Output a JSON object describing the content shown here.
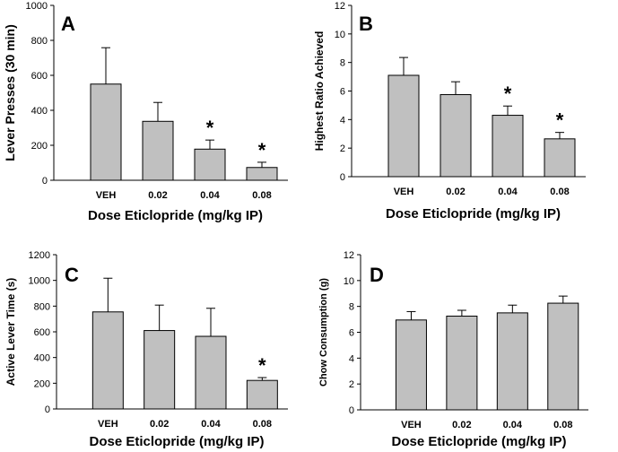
{
  "colors": {
    "bar_fill": "#c0c0c0",
    "axis": "#000000"
  },
  "chart_data": [
    {
      "type": "bar",
      "panel": "A",
      "categories": [
        "VEH",
        "0.02",
        "0.04",
        "0.08"
      ],
      "values": [
        550,
        337,
        178,
        73
      ],
      "errors": [
        208,
        108,
        52,
        30
      ],
      "significant": [
        "",
        "",
        "*",
        "*"
      ],
      "ylim": [
        0,
        1000
      ],
      "yticks": [
        0,
        200,
        400,
        600,
        800,
        1000
      ],
      "xlabel": "Dose Eticlopride (mg/kg IP)",
      "ylabel": "Lever Presses (30 min)",
      "grid": false
    },
    {
      "type": "bar",
      "panel": "B",
      "categories": [
        "VEH",
        "0.02",
        "0.04",
        "0.08"
      ],
      "values": [
        7.1,
        5.75,
        4.3,
        2.65
      ],
      "errors": [
        1.25,
        0.9,
        0.65,
        0.45
      ],
      "significant": [
        "",
        "",
        "*",
        "*"
      ],
      "ylim": [
        0,
        12
      ],
      "yticks": [
        0,
        2,
        4,
        6,
        8,
        10,
        12
      ],
      "xlabel": "Dose Eticlopride (mg/kg IP)",
      "ylabel": "Highest Ratio Achieved",
      "grid": false
    },
    {
      "type": "bar",
      "panel": "C",
      "categories": [
        "VEH",
        "0.02",
        "0.04",
        "0.08"
      ],
      "values": [
        755,
        610,
        565,
        222
      ],
      "errors": [
        262,
        198,
        218,
        22
      ],
      "significant": [
        "",
        "",
        "",
        "*"
      ],
      "ylim": [
        0,
        1200
      ],
      "yticks": [
        0,
        200,
        400,
        600,
        800,
        1000,
        1200
      ],
      "xlabel": "Dose Eticlopride (mg/kg IP)",
      "ylabel": "Active Lever Time (s)",
      "grid": false
    },
    {
      "type": "bar",
      "panel": "D",
      "categories": [
        "VEH",
        "0.02",
        "0.04",
        "0.08"
      ],
      "values": [
        6.95,
        7.25,
        7.5,
        8.25
      ],
      "errors": [
        0.65,
        0.45,
        0.6,
        0.55
      ],
      "significant": [
        "",
        "",
        "",
        ""
      ],
      "ylim": [
        0,
        12
      ],
      "yticks": [
        0,
        2,
        4,
        6,
        8,
        10,
        12
      ],
      "xlabel": "Dose Eticlopride (mg/kg IP)",
      "ylabel": "Chow Consumption (g)",
      "grid": false
    }
  ]
}
